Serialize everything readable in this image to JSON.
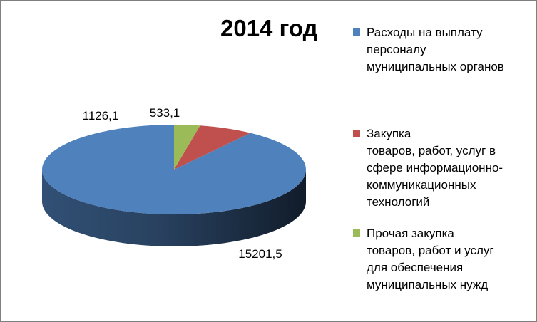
{
  "chart_data": {
    "type": "pie",
    "style": "3d",
    "title": "2014 год",
    "series": [
      {
        "values": [
          15201.5,
          1126.1,
          533.1
        ],
        "data_labels": [
          "15201,5",
          "1126,1",
          "533,1"
        ]
      }
    ],
    "categories": [
      "Расходы на выплату персоналу муниципальных органов",
      "Закупка товаров, работ, услуг в сфере информационно-коммуникационных технологий",
      "Прочая закупка товаров, работ и услуг для обеспечения муниципальных нужд"
    ],
    "colors": [
      "#4f81bd",
      "#c0504d",
      "#9bbb59"
    ],
    "legend_position": "right"
  },
  "legend": {
    "items": [
      {
        "lines": [
          "Расходы на выплату",
          "персоналу",
          "муниципальных органов"
        ]
      },
      {
        "lines": [
          "Закупка",
          "товаров, работ, услуг в",
          "сфере информационно-",
          "коммуникационных",
          "технологий"
        ]
      },
      {
        "lines": [
          "Прочая закупка",
          "товаров, работ и услуг",
          "для обеспечения",
          "муниципальных нужд"
        ]
      }
    ]
  }
}
